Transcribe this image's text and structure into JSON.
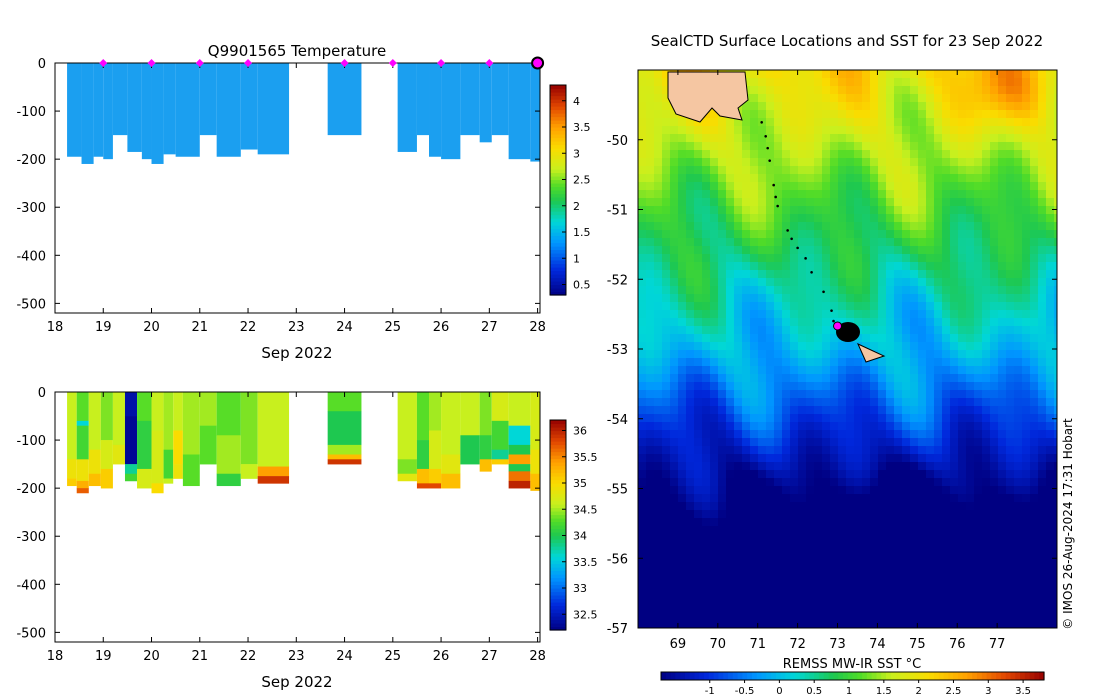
{
  "chart_data": [
    {
      "type": "heatmap",
      "title": "Q9901565  Temperature",
      "xlabel": "Sep 2022",
      "ylabel": "",
      "xlim": [
        18,
        28.05
      ],
      "ylim": [
        -520,
        0
      ],
      "x_ticks": [
        "18",
        "19",
        "20",
        "21",
        "22",
        "23",
        "24",
        "25",
        "26",
        "27",
        "28"
      ],
      "y_ticks": [
        "0",
        "-100",
        "-200",
        "-300",
        "-400",
        "-500"
      ],
      "colorbar": {
        "min": 0.3,
        "max": 4.3,
        "ticks": [
          "0.5",
          "1",
          "1.5",
          "2",
          "2.5",
          "3",
          "3.5",
          "4"
        ]
      },
      "profile_base_color": "#1b9ff0",
      "profile_shade_color": "#1596ee",
      "profiles": [
        {
          "x0": 18.25,
          "x1": 18.55,
          "depth": 195
        },
        {
          "x0": 18.55,
          "x1": 18.8,
          "depth": 210
        },
        {
          "x0": 18.8,
          "x1": 19.0,
          "depth": 195
        },
        {
          "x0": 19.0,
          "x1": 19.2,
          "depth": 200
        },
        {
          "x0": 19.2,
          "x1": 19.5,
          "depth": 150
        },
        {
          "x0": 19.5,
          "x1": 19.8,
          "depth": 185
        },
        {
          "x0": 19.8,
          "x1": 20.0,
          "depth": 200
        },
        {
          "x0": 20.0,
          "x1": 20.25,
          "depth": 210
        },
        {
          "x0": 20.25,
          "x1": 20.5,
          "depth": 190
        },
        {
          "x0": 20.5,
          "x1": 21.0,
          "depth": 195
        },
        {
          "x0": 21.0,
          "x1": 21.35,
          "depth": 150
        },
        {
          "x0": 21.35,
          "x1": 21.85,
          "depth": 195
        },
        {
          "x0": 21.85,
          "x1": 22.2,
          "depth": 180
        },
        {
          "x0": 22.2,
          "x1": 22.85,
          "depth": 190
        },
        {
          "x0": 23.65,
          "x1": 24.35,
          "depth": 150
        },
        {
          "x0": 25.1,
          "x1": 25.5,
          "depth": 185
        },
        {
          "x0": 25.5,
          "x1": 25.75,
          "depth": 150
        },
        {
          "x0": 25.75,
          "x1": 26.0,
          "depth": 195
        },
        {
          "x0": 26.0,
          "x1": 26.4,
          "depth": 200
        },
        {
          "x0": 26.4,
          "x1": 26.8,
          "depth": 150
        },
        {
          "x0": 26.8,
          "x1": 27.05,
          "depth": 165
        },
        {
          "x0": 27.05,
          "x1": 27.4,
          "depth": 150
        },
        {
          "x0": 27.4,
          "x1": 27.85,
          "depth": 200
        },
        {
          "x0": 27.85,
          "x1": 28.05,
          "depth": 205
        }
      ],
      "markers": {
        "color": "#ff00ff",
        "days": [
          19,
          20,
          21,
          22,
          24,
          25,
          26,
          27
        ],
        "current_day": 28
      }
    },
    {
      "type": "heatmap",
      "title": "",
      "xlabel": "Sep 2022",
      "ylabel": "",
      "xlim": [
        18,
        28.05
      ],
      "ylim": [
        -520,
        0
      ],
      "x_ticks": [
        "18",
        "19",
        "20",
        "21",
        "22",
        "23",
        "24",
        "25",
        "26",
        "27",
        "28"
      ],
      "y_ticks": [
        "0",
        "-100",
        "-200",
        "-300",
        "-400",
        "-500"
      ],
      "colorbar": {
        "min": 32.2,
        "max": 36.2,
        "ticks": [
          "32.5",
          "33",
          "33.5",
          "34",
          "34.5",
          "35",
          "35.5",
          "36"
        ]
      },
      "profiles": [
        {
          "x0": 18.25,
          "x1": 18.45,
          "depth": 195,
          "layers": [
            [
              0,
              140,
              34.6
            ],
            [
              140,
              180,
              34.9
            ],
            [
              180,
              195,
              35.1
            ]
          ]
        },
        {
          "x0": 18.45,
          "x1": 18.7,
          "depth": 210,
          "layers": [
            [
              0,
              60,
              34.3
            ],
            [
              60,
              70,
              33.6
            ],
            [
              70,
              140,
              34.2
            ],
            [
              140,
              185,
              34.9
            ],
            [
              185,
              200,
              35.3
            ],
            [
              200,
              210,
              35.7
            ]
          ]
        },
        {
          "x0": 18.7,
          "x1": 18.95,
          "depth": 195,
          "layers": [
            [
              0,
              120,
              34.6
            ],
            [
              120,
              170,
              34.9
            ],
            [
              170,
              195,
              35.2
            ]
          ]
        },
        {
          "x0": 18.95,
          "x1": 19.2,
          "depth": 200,
          "layers": [
            [
              0,
              100,
              34.4
            ],
            [
              100,
              160,
              34.7
            ],
            [
              160,
              200,
              35.1
            ]
          ]
        },
        {
          "x0": 19.2,
          "x1": 19.45,
          "depth": 150,
          "layers": [
            [
              0,
              110,
              34.6
            ],
            [
              110,
              150,
              34.8
            ]
          ]
        },
        {
          "x0": 19.45,
          "x1": 19.7,
          "depth": 185,
          "layers": [
            [
              0,
              50,
              32.4
            ],
            [
              50,
              150,
              32.3
            ],
            [
              150,
              170,
              33.8
            ],
            [
              170,
              185,
              34.2
            ]
          ]
        },
        {
          "x0": 19.7,
          "x1": 20.0,
          "depth": 200,
          "layers": [
            [
              0,
              60,
              34.3
            ],
            [
              60,
              160,
              34.1
            ],
            [
              160,
              200,
              34.7
            ]
          ]
        },
        {
          "x0": 20.0,
          "x1": 20.25,
          "depth": 210,
          "layers": [
            [
              0,
              80,
              34.6
            ],
            [
              80,
              190,
              34.7
            ],
            [
              190,
              210,
              35.0
            ]
          ]
        },
        {
          "x0": 20.25,
          "x1": 20.45,
          "depth": 190,
          "layers": [
            [
              0,
              120,
              34.5
            ],
            [
              120,
              180,
              34.2
            ],
            [
              180,
              190,
              34.6
            ]
          ]
        },
        {
          "x0": 20.45,
          "x1": 20.65,
          "depth": 180,
          "layers": [
            [
              0,
              80,
              34.6
            ],
            [
              80,
              150,
              35.0
            ],
            [
              150,
              180,
              34.9
            ]
          ]
        },
        {
          "x0": 20.65,
          "x1": 21.0,
          "depth": 195,
          "layers": [
            [
              0,
              130,
              34.5
            ],
            [
              130,
              195,
              34.3
            ]
          ]
        },
        {
          "x0": 21.0,
          "x1": 21.35,
          "depth": 150,
          "layers": [
            [
              0,
              70,
              34.5
            ],
            [
              70,
              150,
              34.3
            ]
          ]
        },
        {
          "x0": 21.35,
          "x1": 21.85,
          "depth": 195,
          "layers": [
            [
              0,
              90,
              34.3
            ],
            [
              90,
              170,
              34.5
            ],
            [
              170,
              195,
              34.1
            ]
          ]
        },
        {
          "x0": 21.85,
          "x1": 22.2,
          "depth": 180,
          "layers": [
            [
              0,
              150,
              34.4
            ],
            [
              150,
              180,
              34.6
            ]
          ]
        },
        {
          "x0": 22.2,
          "x1": 22.85,
          "depth": 190,
          "layers": [
            [
              0,
              155,
              34.6
            ],
            [
              155,
              175,
              35.4
            ],
            [
              175,
              190,
              35.9
            ]
          ]
        },
        {
          "x0": 23.65,
          "x1": 24.35,
          "depth": 150,
          "layers": [
            [
              0,
              40,
              34.3
            ],
            [
              40,
              110,
              34.0
            ],
            [
              110,
              130,
              34.5
            ],
            [
              130,
              140,
              35.2
            ],
            [
              140,
              150,
              35.9
            ]
          ]
        },
        {
          "x0": 25.1,
          "x1": 25.5,
          "depth": 185,
          "layers": [
            [
              0,
              140,
              34.6
            ],
            [
              140,
              170,
              34.4
            ],
            [
              170,
              185,
              34.8
            ]
          ]
        },
        {
          "x0": 25.5,
          "x1": 25.75,
          "depth": 200,
          "layers": [
            [
              0,
              100,
              34.3
            ],
            [
              100,
              160,
              34.1
            ],
            [
              160,
              190,
              35.2
            ],
            [
              190,
              200,
              35.8
            ]
          ]
        },
        {
          "x0": 25.75,
          "x1": 26.0,
          "depth": 200,
          "layers": [
            [
              0,
              80,
              34.5
            ],
            [
              80,
              160,
              34.7
            ],
            [
              160,
              190,
              35.1
            ],
            [
              190,
              200,
              35.8
            ]
          ]
        },
        {
          "x0": 26.0,
          "x1": 26.4,
          "depth": 200,
          "layers": [
            [
              0,
              130,
              34.6
            ],
            [
              130,
              170,
              34.8
            ],
            [
              170,
              200,
              35.2
            ]
          ]
        },
        {
          "x0": 26.4,
          "x1": 26.8,
          "depth": 150,
          "layers": [
            [
              0,
              90,
              34.6
            ],
            [
              90,
              150,
              34.0
            ]
          ]
        },
        {
          "x0": 26.8,
          "x1": 27.05,
          "depth": 165,
          "layers": [
            [
              0,
              90,
              34.4
            ],
            [
              90,
              140,
              34.1
            ],
            [
              140,
              165,
              35.2
            ]
          ]
        },
        {
          "x0": 27.05,
          "x1": 27.4,
          "depth": 150,
          "layers": [
            [
              0,
              60,
              34.7
            ],
            [
              60,
              120,
              34.2
            ],
            [
              120,
              140,
              33.8
            ],
            [
              140,
              150,
              35.1
            ]
          ]
        },
        {
          "x0": 27.4,
          "x1": 27.85,
          "depth": 200,
          "layers": [
            [
              0,
              70,
              34.6
            ],
            [
              70,
              110,
              33.6
            ],
            [
              110,
              130,
              34.0
            ],
            [
              130,
              150,
              35.4
            ],
            [
              150,
              165,
              34.0
            ],
            [
              165,
              185,
              35.6
            ],
            [
              185,
              200,
              36.0
            ]
          ]
        },
        {
          "x0": 27.85,
          "x1": 28.05,
          "depth": 205,
          "layers": [
            [
              0,
              120,
              34.7
            ],
            [
              120,
              170,
              34.9
            ],
            [
              170,
              205,
              35.2
            ]
          ]
        }
      ]
    },
    {
      "type": "heatmap",
      "title": "SealCTD Surface Locations and SST for 23 Sep 2022",
      "xlabel": "",
      "ylabel": "",
      "xlim": [
        68.0,
        78.5
      ],
      "ylim": [
        -57.0,
        -49.0
      ],
      "x_ticks": [
        "69",
        "70",
        "71",
        "72",
        "73",
        "74",
        "75",
        "76",
        "77"
      ],
      "y_ticks": [
        "-50",
        "-51",
        "-52",
        "-53",
        "-54",
        "-55",
        "-56",
        "-57"
      ],
      "colorbar": {
        "label": "REMSS MW-IR SST °C",
        "min": -1.7,
        "max": 3.8,
        "ticks": [
          "-1",
          "-0.5",
          "0",
          "0.5",
          "1",
          "1.5",
          "2",
          "2.5",
          "3",
          "3.5"
        ]
      },
      "track": [
        [
          71.1,
          -49.75
        ],
        [
          71.2,
          -49.95
        ],
        [
          71.25,
          -50.12
        ],
        [
          71.3,
          -50.3
        ],
        [
          71.4,
          -50.65
        ],
        [
          71.45,
          -50.82
        ],
        [
          71.5,
          -50.95
        ],
        [
          71.75,
          -51.3
        ],
        [
          71.85,
          -51.42
        ],
        [
          72.0,
          -51.55
        ],
        [
          72.2,
          -51.7
        ],
        [
          72.35,
          -51.9
        ],
        [
          72.65,
          -52.18
        ],
        [
          72.85,
          -52.45
        ],
        [
          72.9,
          -52.6
        ],
        [
          73.0,
          -52.7
        ],
        [
          73.1,
          -52.8
        ]
      ],
      "current_position": [
        73.0,
        -52.67
      ],
      "credit": "© IMOS 26-Aug-2024 17:31 Hobart"
    }
  ]
}
